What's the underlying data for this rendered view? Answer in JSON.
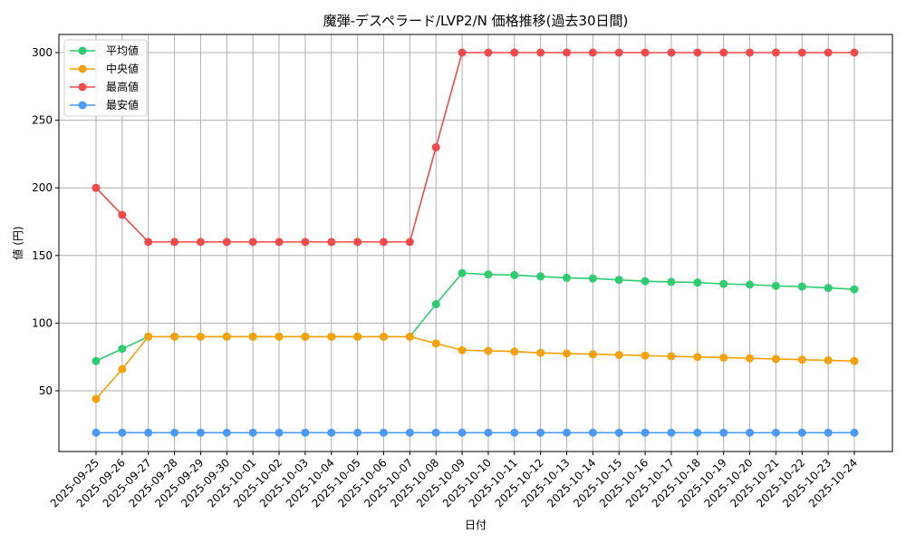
{
  "chart_data": {
    "type": "line",
    "title": "魔弾-デスペラード/LVP2/N 価格推移(過去30日間)",
    "xlabel": "日付",
    "ylabel": "値 (円)",
    "ylim": [
      5,
      315
    ],
    "yticks": [
      50,
      100,
      150,
      200,
      250,
      300
    ],
    "grid": true,
    "legend_position": "upper left",
    "x": [
      "2025-09-25",
      "2025-09-26",
      "2025-09-27",
      "2025-09-28",
      "2025-09-29",
      "2025-09-30",
      "2025-10-01",
      "2025-10-02",
      "2025-10-03",
      "2025-10-04",
      "2025-10-05",
      "2025-10-06",
      "2025-10-07",
      "2025-10-08",
      "2025-10-09",
      "2025-10-10",
      "2025-10-11",
      "2025-10-12",
      "2025-10-13",
      "2025-10-14",
      "2025-10-15",
      "2025-10-16",
      "2025-10-17",
      "2025-10-18",
      "2025-10-19",
      "2025-10-20",
      "2025-10-21",
      "2025-10-22",
      "2025-10-23",
      "2025-10-24"
    ],
    "series": [
      {
        "name": "平均値",
        "color": "#2ecc71",
        "values": [
          72,
          81,
          90,
          90,
          90,
          90,
          90,
          90,
          90,
          90,
          90,
          90,
          90,
          114,
          137,
          136,
          135.5,
          134.5,
          133.5,
          133,
          132,
          131,
          130.5,
          130,
          129,
          128.5,
          127.5,
          127,
          126,
          125
        ]
      },
      {
        "name": "中央値",
        "color": "#f5a10a",
        "values": [
          44,
          66,
          90,
          90,
          90,
          90,
          90,
          90,
          90,
          90,
          90,
          90,
          90,
          85,
          80,
          79.5,
          79,
          78,
          77.5,
          77,
          76.5,
          76,
          75.5,
          75,
          74.5,
          74,
          73.5,
          73,
          72.5,
          72
        ]
      },
      {
        "name": "最高値",
        "color": "#f24a4a",
        "values": [
          200,
          180,
          160,
          160,
          160,
          160,
          160,
          160,
          160,
          160,
          160,
          160,
          160,
          230,
          300,
          300,
          300,
          300,
          300,
          300,
          300,
          300,
          300,
          300,
          300,
          300,
          300,
          300,
          300,
          300
        ]
      },
      {
        "name": "最安値",
        "color": "#4a9af5",
        "values": [
          19,
          19,
          19,
          19,
          19,
          19,
          19,
          19,
          19,
          19,
          19,
          19,
          19,
          19,
          19,
          19,
          19,
          19,
          19,
          19,
          19,
          19,
          19,
          19,
          19,
          19,
          19,
          19,
          19,
          19
        ]
      }
    ]
  }
}
